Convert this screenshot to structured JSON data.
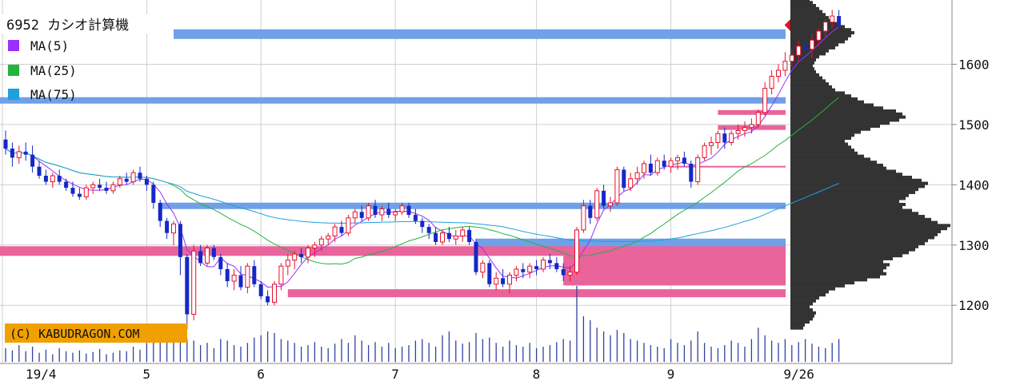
{
  "chart_data": {
    "type": "candlestick",
    "title": "6952 カシオ計算機",
    "legend": [
      {
        "label": "MA(5)",
        "color": "#9b30ff"
      },
      {
        "label": "MA(25)",
        "color": "#22b43c"
      },
      {
        "label": "MA(75)",
        "color": "#1ea0dc"
      }
    ],
    "legend_placement": "top-left",
    "copyright": "(C) KABUDRAGON.COM",
    "x_tick_labels": [
      {
        "label": "19/4",
        "day": 0
      },
      {
        "label": "5",
        "day": 21
      },
      {
        "label": "6",
        "day": 38
      },
      {
        "label": "7",
        "day": 58
      },
      {
        "label": "8",
        "day": 79
      },
      {
        "label": "9",
        "day": 99
      },
      {
        "label": "9/26",
        "day": 116
      }
    ],
    "y_ticks": [
      1200,
      1300,
      1400,
      1500,
      1600
    ],
    "ylim": [
      1130,
      1700
    ],
    "grid": true,
    "up_color": "#e8102a",
    "down_color": "#1428c8",
    "ohlc": [
      [
        1475,
        1490,
        1450,
        1460
      ],
      [
        1460,
        1470,
        1430,
        1445
      ],
      [
        1445,
        1465,
        1435,
        1455
      ],
      [
        1455,
        1470,
        1440,
        1450
      ],
      [
        1450,
        1465,
        1420,
        1430
      ],
      [
        1430,
        1440,
        1410,
        1415
      ],
      [
        1415,
        1425,
        1400,
        1405
      ],
      [
        1405,
        1420,
        1395,
        1415
      ],
      [
        1415,
        1425,
        1400,
        1405
      ],
      [
        1405,
        1410,
        1390,
        1395
      ],
      [
        1395,
        1405,
        1380,
        1385
      ],
      [
        1385,
        1395,
        1375,
        1380
      ],
      [
        1380,
        1400,
        1375,
        1395
      ],
      [
        1395,
        1405,
        1385,
        1400
      ],
      [
        1400,
        1410,
        1390,
        1395
      ],
      [
        1395,
        1405,
        1385,
        1390
      ],
      [
        1390,
        1405,
        1385,
        1400
      ],
      [
        1400,
        1415,
        1395,
        1410
      ],
      [
        1410,
        1420,
        1400,
        1405
      ],
      [
        1405,
        1425,
        1400,
        1420
      ],
      [
        1420,
        1430,
        1405,
        1410
      ],
      [
        1410,
        1415,
        1390,
        1400
      ],
      [
        1400,
        1405,
        1360,
        1370
      ],
      [
        1370,
        1375,
        1330,
        1340
      ],
      [
        1340,
        1345,
        1310,
        1320
      ],
      [
        1320,
        1340,
        1300,
        1335
      ],
      [
        1335,
        1340,
        1250,
        1280
      ],
      [
        1280,
        1285,
        1160,
        1185
      ],
      [
        1185,
        1300,
        1175,
        1290
      ],
      [
        1290,
        1300,
        1265,
        1270
      ],
      [
        1270,
        1300,
        1265,
        1295
      ],
      [
        1295,
        1300,
        1275,
        1280
      ],
      [
        1280,
        1285,
        1250,
        1260
      ],
      [
        1260,
        1270,
        1230,
        1240
      ],
      [
        1240,
        1260,
        1225,
        1250
      ],
      [
        1250,
        1265,
        1225,
        1230
      ],
      [
        1230,
        1270,
        1220,
        1265
      ],
      [
        1265,
        1275,
        1230,
        1235
      ],
      [
        1235,
        1240,
        1210,
        1215
      ],
      [
        1215,
        1225,
        1200,
        1205
      ],
      [
        1205,
        1240,
        1200,
        1235
      ],
      [
        1235,
        1270,
        1225,
        1265
      ],
      [
        1265,
        1285,
        1250,
        1275
      ],
      [
        1275,
        1290,
        1260,
        1285
      ],
      [
        1285,
        1295,
        1270,
        1280
      ],
      [
        1280,
        1300,
        1270,
        1295
      ],
      [
        1295,
        1305,
        1280,
        1300
      ],
      [
        1300,
        1315,
        1290,
        1310
      ],
      [
        1310,
        1320,
        1300,
        1315
      ],
      [
        1315,
        1335,
        1305,
        1330
      ],
      [
        1330,
        1340,
        1315,
        1320
      ],
      [
        1320,
        1350,
        1315,
        1345
      ],
      [
        1345,
        1360,
        1335,
        1355
      ],
      [
        1355,
        1365,
        1340,
        1345
      ],
      [
        1345,
        1370,
        1340,
        1365
      ],
      [
        1365,
        1375,
        1345,
        1350
      ],
      [
        1350,
        1365,
        1340,
        1360
      ],
      [
        1360,
        1370,
        1345,
        1350
      ],
      [
        1350,
        1360,
        1340,
        1355
      ],
      [
        1355,
        1370,
        1350,
        1365
      ],
      [
        1365,
        1370,
        1345,
        1350
      ],
      [
        1350,
        1360,
        1335,
        1340
      ],
      [
        1340,
        1345,
        1320,
        1330
      ],
      [
        1330,
        1335,
        1310,
        1320
      ],
      [
        1320,
        1330,
        1300,
        1305
      ],
      [
        1305,
        1325,
        1300,
        1320
      ],
      [
        1320,
        1330,
        1305,
        1310
      ],
      [
        1310,
        1325,
        1300,
        1315
      ],
      [
        1315,
        1330,
        1305,
        1325
      ],
      [
        1325,
        1330,
        1300,
        1305
      ],
      [
        1305,
        1310,
        1250,
        1255
      ],
      [
        1255,
        1275,
        1245,
        1270
      ],
      [
        1270,
        1275,
        1230,
        1235
      ],
      [
        1235,
        1255,
        1225,
        1245
      ],
      [
        1245,
        1260,
        1230,
        1235
      ],
      [
        1235,
        1255,
        1220,
        1250
      ],
      [
        1250,
        1265,
        1240,
        1260
      ],
      [
        1260,
        1270,
        1245,
        1255
      ],
      [
        1255,
        1270,
        1245,
        1265
      ],
      [
        1265,
        1275,
        1250,
        1260
      ],
      [
        1260,
        1280,
        1255,
        1275
      ],
      [
        1275,
        1285,
        1260,
        1270
      ],
      [
        1270,
        1280,
        1255,
        1260
      ],
      [
        1260,
        1270,
        1240,
        1250
      ],
      [
        1250,
        1265,
        1240,
        1255
      ],
      [
        1255,
        1330,
        1250,
        1325
      ],
      [
        1325,
        1375,
        1320,
        1365
      ],
      [
        1365,
        1375,
        1335,
        1345
      ],
      [
        1345,
        1395,
        1340,
        1390
      ],
      [
        1390,
        1400,
        1360,
        1365
      ],
      [
        1365,
        1380,
        1355,
        1370
      ],
      [
        1370,
        1430,
        1365,
        1425
      ],
      [
        1425,
        1430,
        1390,
        1395
      ],
      [
        1395,
        1420,
        1390,
        1410
      ],
      [
        1410,
        1430,
        1400,
        1420
      ],
      [
        1420,
        1440,
        1410,
        1435
      ],
      [
        1435,
        1450,
        1415,
        1420
      ],
      [
        1420,
        1445,
        1415,
        1440
      ],
      [
        1440,
        1450,
        1425,
        1430
      ],
      [
        1430,
        1445,
        1420,
        1440
      ],
      [
        1440,
        1450,
        1425,
        1445
      ],
      [
        1445,
        1455,
        1430,
        1435
      ],
      [
        1435,
        1440,
        1395,
        1405
      ],
      [
        1405,
        1450,
        1400,
        1445
      ],
      [
        1445,
        1470,
        1440,
        1465
      ],
      [
        1465,
        1480,
        1450,
        1470
      ],
      [
        1470,
        1490,
        1460,
        1485
      ],
      [
        1485,
        1495,
        1460,
        1470
      ],
      [
        1470,
        1490,
        1465,
        1485
      ],
      [
        1485,
        1500,
        1475,
        1490
      ],
      [
        1490,
        1505,
        1480,
        1495
      ],
      [
        1495,
        1510,
        1485,
        1500
      ],
      [
        1500,
        1525,
        1495,
        1520
      ],
      [
        1520,
        1570,
        1515,
        1560
      ],
      [
        1560,
        1590,
        1550,
        1580
      ],
      [
        1580,
        1600,
        1570,
        1590
      ],
      [
        1590,
        1620,
        1580,
        1605
      ],
      [
        1605,
        1625,
        1595,
        1615
      ],
      [
        1615,
        1640,
        1605,
        1630
      ],
      [
        1630,
        1645,
        1615,
        1625
      ],
      [
        1625,
        1650,
        1610,
        1640
      ],
      [
        1640,
        1660,
        1630,
        1655
      ],
      [
        1655,
        1675,
        1645,
        1670
      ],
      [
        1670,
        1690,
        1660,
        1680
      ],
      [
        1680,
        1690,
        1660,
        1665
      ]
    ],
    "volume_scale_max": 100,
    "volume": [
      18,
      15,
      22,
      14,
      20,
      12,
      16,
      10,
      18,
      14,
      12,
      15,
      11,
      13,
      17,
      10,
      12,
      15,
      14,
      20,
      16,
      25,
      50,
      42,
      38,
      30,
      45,
      30,
      28,
      22,
      25,
      18,
      30,
      28,
      22,
      20,
      25,
      32,
      35,
      40,
      38,
      30,
      28,
      25,
      20,
      22,
      26,
      20,
      18,
      24,
      30,
      25,
      35,
      28,
      22,
      26,
      20,
      25,
      18,
      20,
      22,
      28,
      30,
      25,
      20,
      35,
      40,
      28,
      24,
      26,
      38,
      30,
      32,
      25,
      20,
      28,
      22,
      20,
      25,
      18,
      20,
      22,
      26,
      30,
      28,
      100,
      60,
      55,
      45,
      40,
      35,
      42,
      38,
      30,
      28,
      25,
      22,
      20,
      18,
      30,
      25,
      22,
      28,
      40,
      25,
      20,
      18,
      22,
      28,
      25,
      20,
      30,
      45,
      35,
      28,
      25,
      30,
      22,
      26,
      30,
      24,
      20,
      18,
      25,
      30
    ],
    "support_resistance": [
      {
        "price": 1650,
        "color": "#6fa0e8",
        "x_from_day": 25,
        "thickness": 12
      },
      {
        "price": 1540,
        "color": "#6fa0e8",
        "x_from_day": 0,
        "thickness": 8
      },
      {
        "price": 1365,
        "color": "#6fa0e8",
        "x_from_day": 23,
        "thickness": 8
      },
      {
        "price": 1300,
        "color": "#6fa0e8",
        "x_from_day": 70,
        "thickness": 16
      },
      {
        "price": 1290,
        "color": "#e8649a",
        "x_from_day": 0,
        "thickness": 12
      },
      {
        "price": 1220,
        "color": "#e8649a",
        "x_from_day": 42,
        "thickness": 10
      },
      {
        "price": 1262,
        "color": "#e8649a",
        "x_from_day": 83,
        "thickness": 44
      },
      {
        "price": 1520,
        "color": "#e8649a",
        "x_from_day": 106,
        "thickness": 6
      },
      {
        "price": 1495,
        "color": "#e8649a",
        "x_from_day": 106,
        "thickness": 6
      },
      {
        "price": 1430,
        "color": "#e8649a",
        "x_from_day": 99,
        "thickness": 2
      }
    ],
    "volume_profile_price_step": 5,
    "volume_profile": [
      8,
      9,
      12,
      14,
      15,
      16,
      14,
      12,
      14,
      16,
      18,
      22,
      24,
      28,
      34,
      40,
      48,
      56,
      60,
      58,
      60,
      62,
      58,
      64,
      70,
      74,
      78,
      80,
      84,
      86,
      90,
      92,
      94,
      98,
      100,
      92,
      88,
      84,
      80,
      76,
      70,
      72,
      68,
      72,
      74,
      78,
      80,
      84,
      86,
      82,
      76,
      70,
      66,
      60,
      58,
      54,
      50,
      46,
      42,
      40,
      38,
      36,
      34,
      38,
      40,
      44,
      50,
      56,
      62,
      68,
      72,
      70,
      66,
      58,
      52,
      46,
      42,
      38,
      34,
      28,
      26,
      24,
      22,
      20,
      18,
      16,
      15,
      14,
      15,
      16,
      18,
      22,
      24,
      28,
      30,
      34,
      36,
      38,
      40,
      38,
      34,
      30,
      26,
      24,
      22,
      20,
      18,
      16,
      14,
      12,
      10,
      8,
      6,
      5,
      4,
      3,
      3
    ],
    "last_price_marker": 1665
  }
}
